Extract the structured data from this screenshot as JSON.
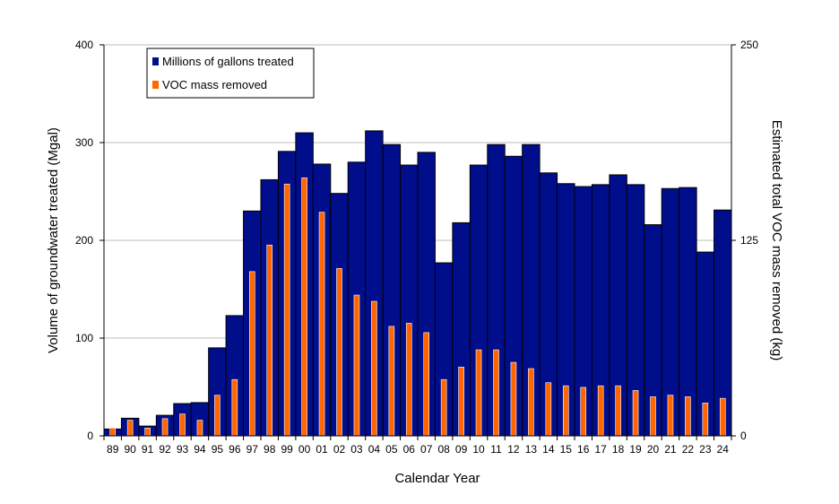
{
  "chart_data": {
    "type": "bar",
    "categories": [
      "89",
      "90",
      "91",
      "92",
      "93",
      "94",
      "95",
      "96",
      "97",
      "98",
      "99",
      "00",
      "01",
      "02",
      "03",
      "04",
      "05",
      "06",
      "07",
      "08",
      "09",
      "10",
      "11",
      "12",
      "13",
      "14",
      "15",
      "16",
      "17",
      "18",
      "19",
      "20",
      "21",
      "22",
      "23",
      "24"
    ],
    "series": [
      {
        "name": "Millions of gallons treated",
        "axis": "left",
        "color": "#000e8c",
        "values": [
          7,
          18,
          10,
          21,
          33,
          34,
          90,
          123,
          230,
          262,
          291,
          310,
          278,
          248,
          280,
          312,
          298,
          277,
          290,
          177,
          218,
          277,
          298,
          286,
          298,
          269,
          258,
          255,
          257,
          267,
          257,
          216,
          253,
          254,
          188,
          231
        ]
      },
      {
        "name": "VOC mass removed",
        "axis": "right",
        "color": "#ff6600",
        "values": [
          5,
          10,
          5,
          11,
          14,
          10,
          26,
          36,
          105,
          122,
          161,
          165,
          143,
          107,
          90,
          86,
          70,
          72,
          66,
          36,
          44,
          55,
          55,
          47,
          43,
          34,
          32,
          31,
          32,
          32,
          29,
          25,
          26,
          25,
          21,
          24
        ]
      }
    ],
    "xlabel": "Calendar Year",
    "ylabel_left": "Volume of groundwater treated (Mgal)",
    "ylabel_right": "Estimated total VOC mass removed (kg)",
    "ylim_left": [
      0,
      400
    ],
    "yticks_left": [
      "0",
      "100",
      "200",
      "300",
      "400"
    ],
    "ylim_right": [
      0,
      250
    ],
    "yticks_right": [
      "0",
      "125",
      "250"
    ],
    "grid": true,
    "legend_position": "top-left",
    "gridline_color": "#bdbdbd"
  }
}
